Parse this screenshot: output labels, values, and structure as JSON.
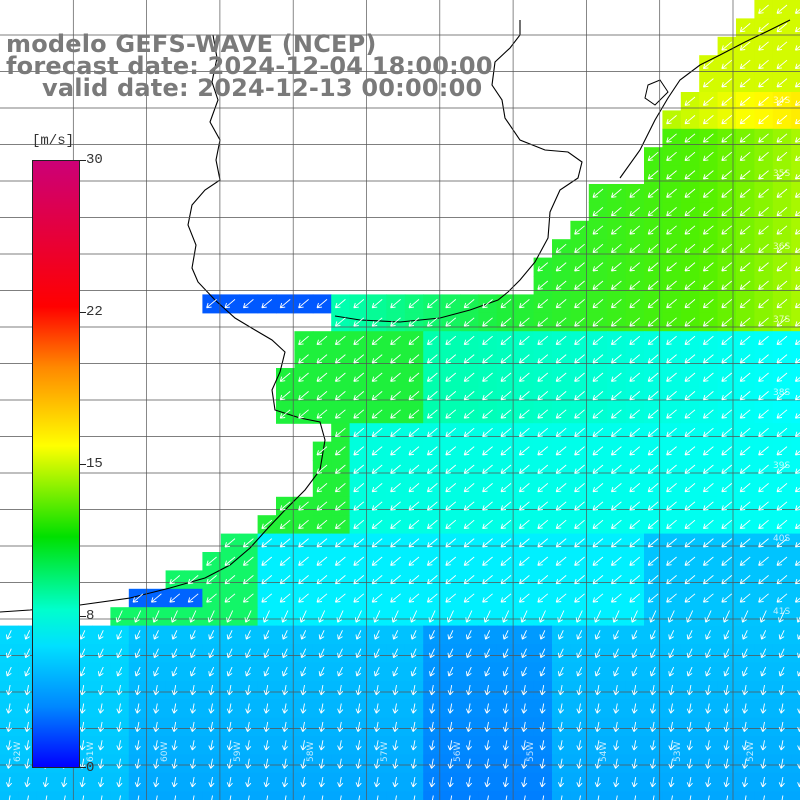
{
  "header": {
    "line1": "modelo GEFS-WAVE (NCEP)",
    "line2": "forecast date: 2024-12-04 18:00:00",
    "line3": "valid date: 2024-12-13 00:00:00"
  },
  "colorbar": {
    "unit": "[m/s]",
    "ticks": [
      "30",
      "22",
      "15",
      "8",
      "0"
    ],
    "colors": [
      "#cc0077",
      "#ff0000",
      "#ff8800",
      "#ffff00",
      "#00e000",
      "#00ffcc",
      "#00e0ff",
      "#0088ff",
      "#0000ff"
    ]
  },
  "map": {
    "land_color": "#ffffff",
    "coast_color": "#000000",
    "grid_color": "#555555",
    "arrow_color": "#ffffff",
    "lat_labels": [
      "34S",
      "35S",
      "36S",
      "37S",
      "38S",
      "39S",
      "40S",
      "41S"
    ],
    "lon_labels": [
      "62W",
      "61W",
      "60W",
      "59W",
      "58W",
      "57W",
      "56W",
      "55W",
      "54W",
      "53W",
      "52W"
    ]
  }
}
